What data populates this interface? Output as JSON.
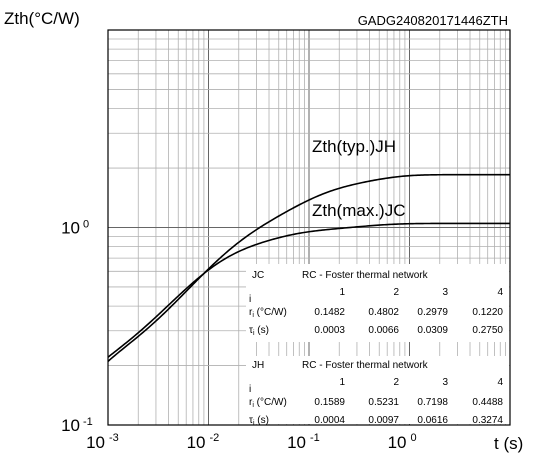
{
  "chart_data": {
    "type": "line",
    "header_code": "GADG240820171446ZTH",
    "ylabel": "Zth(°C/W)",
    "xlabel": "t (s)",
    "x_scale": "log",
    "y_scale": "log",
    "xlim": [
      0.001,
      10
    ],
    "ylim": [
      0.1,
      10
    ],
    "grid": true,
    "x_ticks": [
      {
        "base": "10",
        "exp": "-3"
      },
      {
        "base": "10",
        "exp": "-2"
      },
      {
        "base": "10",
        "exp": "-1"
      },
      {
        "base": "10",
        "exp": "0"
      }
    ],
    "y_ticks": [
      {
        "base": "10",
        "exp": "0",
        "value": 1
      },
      {
        "base": "10",
        "exp": "-1",
        "value": 0.1
      }
    ],
    "series": [
      {
        "name": "Zth(typ.)JH",
        "r": [
          0.1589,
          0.5231,
          0.7198,
          0.4488
        ],
        "tau": [
          0.0004,
          0.0097,
          0.0616,
          0.3274
        ]
      },
      {
        "name": "Zth(max.)JC",
        "r": [
          0.1482,
          0.4802,
          0.2979,
          0.122
        ],
        "tau": [
          0.0003,
          0.0066,
          0.0309,
          0.275
        ]
      }
    ],
    "tables": [
      {
        "id": "JC",
        "title": "RC - Foster thermal network",
        "index_label": "i",
        "columns": [
          "1",
          "2",
          "3",
          "4"
        ],
        "r_label": "r",
        "r_sub": "i",
        "r_unit": " (°C/W)",
        "r_values": [
          "0.1482",
          "0.4802",
          "0.2979",
          "0.1220"
        ],
        "tau_label": "τ",
        "tau_sub": "i",
        "tau_unit": " (s)",
        "tau_values": [
          "0.0003",
          "0.0066",
          "0.0309",
          "0.2750"
        ]
      },
      {
        "id": "JH",
        "title": "RC - Foster thermal network",
        "index_label": "i",
        "columns": [
          "1",
          "2",
          "3",
          "4"
        ],
        "r_label": "r",
        "r_sub": "i",
        "r_unit": " (°C/W)",
        "r_values": [
          "0.1589",
          "0.5231",
          "0.7198",
          "0.4488"
        ],
        "tau_label": "τ",
        "tau_sub": "i",
        "tau_unit": " (s)",
        "tau_values": [
          "0.0004",
          "0.0097",
          "0.0616",
          "0.3274"
        ]
      }
    ]
  }
}
